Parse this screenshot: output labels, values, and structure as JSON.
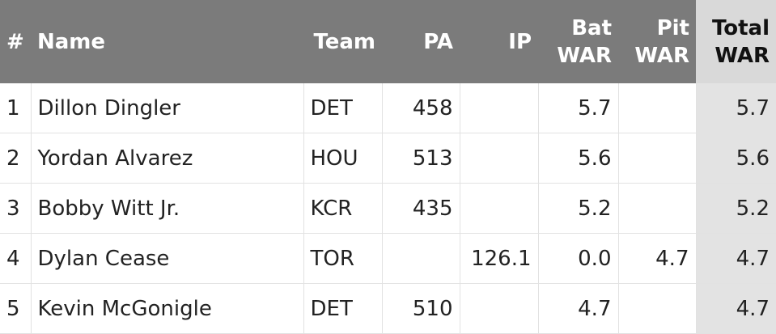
{
  "table": {
    "columns": [
      "#",
      "Name",
      "Team",
      "PA",
      "IP",
      "Bat WAR",
      "Pit WAR",
      "Total WAR"
    ],
    "rows": [
      [
        "1",
        "Dillon Dingler",
        "DET",
        "458",
        null,
        "5.7",
        null,
        "5.7"
      ],
      [
        "2",
        "Yordan Alvarez",
        "HOU",
        "513",
        null,
        "5.6",
        null,
        "5.6"
      ],
      [
        "3",
        "Bobby Witt Jr.",
        "KCR",
        "435",
        null,
        "5.2",
        null,
        "5.2"
      ],
      [
        "4",
        "Dylan Cease",
        "TOR",
        null,
        "126.1",
        "0.0",
        "4.7",
        "4.7"
      ],
      [
        "5",
        "Kevin McGonigle",
        "DET",
        "510",
        null,
        "4.7",
        null,
        "4.7"
      ]
    ]
  }
}
